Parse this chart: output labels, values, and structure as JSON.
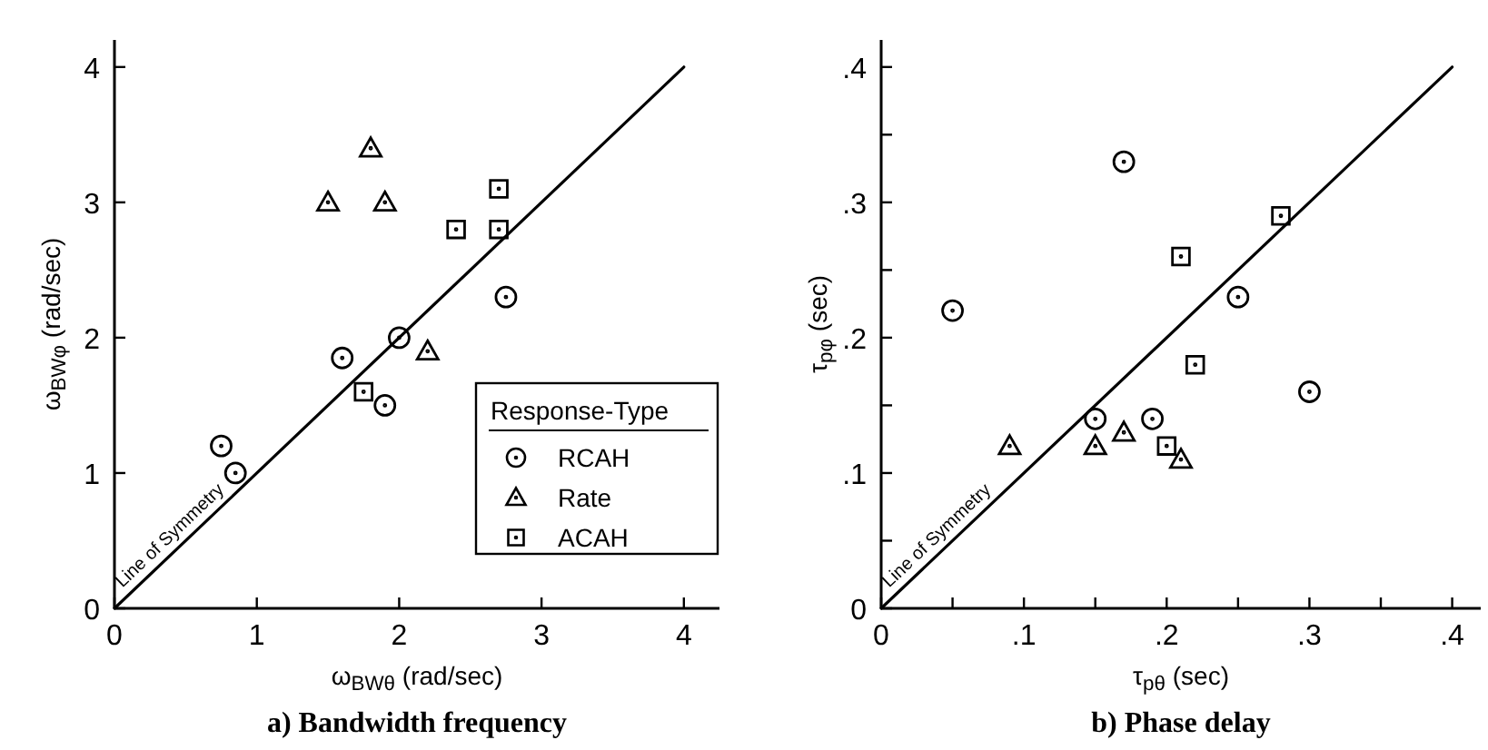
{
  "chart_data": [
    {
      "type": "scatter",
      "title": "a) Bandwidth frequency",
      "xlabel": "ω$_{BWθ}$ (rad/sec)",
      "ylabel": "ω$_{BWφ}$ (rad/sec)",
      "legend_title": "Response-Type",
      "legend": "bottom right",
      "xlim": [
        0,
        4.25
      ],
      "ylim": [
        0,
        4.2
      ],
      "xticks": [
        0,
        1,
        2,
        3,
        4
      ],
      "yticks": [
        0,
        1,
        2,
        3,
        4
      ],
      "series": [
        {
          "name": "RCAH",
          "color": "#000000",
          "marker": "circle",
          "x": [
            0.75,
            0.85,
            1.6,
            2.0,
            1.9,
            2.75
          ],
          "values": [
            1.2,
            1.0,
            1.85,
            2.0,
            1.5,
            2.3
          ]
        },
        {
          "name": "Rate",
          "color": "#000000",
          "marker": "triangle",
          "x": [
            1.5,
            1.8,
            1.9,
            2.2
          ],
          "values": [
            3.0,
            3.4,
            3.0,
            1.9
          ]
        },
        {
          "name": "ACAH",
          "color": "#000000",
          "marker": "square",
          "x": [
            1.75,
            2.4,
            2.7,
            2.7
          ],
          "values": [
            1.6,
            2.8,
            2.8,
            3.1
          ]
        },
        {
          "name": "Line of Symmetry",
          "type": "line",
          "color": "#000000",
          "x": [
            0,
            4
          ],
          "values": [
            0,
            4
          ]
        }
      ]
    },
    {
      "type": "scatter",
      "title": "b) Phase delay",
      "xlabel": "τ$_{pθ}$ (sec)",
      "ylabel": "τ$_{pφ}$ (sec)",
      "legend": false,
      "xlim": [
        0,
        0.42
      ],
      "ylim": [
        0,
        0.42
      ],
      "xticks": [
        0,
        {
          "value": 0.05,
          "label": null
        },
        {
          "value": 0.1,
          "label": ".1"
        },
        {
          "value": 0.15,
          "label": null
        },
        {
          "value": 0.2,
          "label": ".2"
        },
        {
          "value": 0.25,
          "label": null
        },
        {
          "value": 0.3,
          "label": ".3"
        },
        {
          "value": 0.35,
          "label": null
        },
        {
          "value": 0.4,
          "label": ".4"
        }
      ],
      "yticks": [
        0,
        {
          "value": 0.05,
          "label": null
        },
        {
          "value": 0.1,
          "label": ".1"
        },
        {
          "value": 0.15,
          "label": null
        },
        {
          "value": 0.2,
          "label": ".2"
        },
        {
          "value": 0.25,
          "label": null
        },
        {
          "value": 0.3,
          "label": ".3"
        },
        {
          "value": 0.35,
          "label": null
        },
        {
          "value": 0.4,
          "label": ".4"
        }
      ],
      "series": [
        {
          "color": "#000000",
          "marker": "circle",
          "x": [
            0.05,
            0.17,
            0.15,
            0.19,
            0.25,
            0.3
          ],
          "values": [
            0.22,
            0.33,
            0.14,
            0.14,
            0.23,
            0.16
          ]
        },
        {
          "color": "#000000",
          "marker": "triangle",
          "x": [
            0.09,
            0.15,
            0.17,
            0.21
          ],
          "values": [
            0.12,
            0.12,
            0.13,
            0.11
          ]
        },
        {
          "color": "#000000",
          "marker": "square",
          "x": [
            0.2,
            0.21,
            0.22,
            0.28
          ],
          "values": [
            0.12,
            0.26,
            0.18,
            0.29
          ]
        },
        {
          "name": "Line of Symmetry",
          "type": "line",
          "color": "#000000",
          "x": [
            0,
            0.4
          ],
          "values": [
            0,
            0.4
          ]
        }
      ]
    }
  ]
}
